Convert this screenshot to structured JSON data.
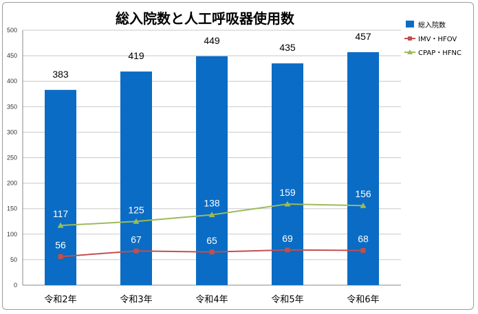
{
  "chart_data": {
    "type": "bar",
    "title": "総入院数と人工呼吸器使用数",
    "categories": [
      "令和2年",
      "令和3年",
      "令和4年",
      "令和5年",
      "令和6年"
    ],
    "ylim": [
      0,
      500
    ],
    "yticks": [
      0,
      50,
      100,
      150,
      200,
      250,
      300,
      350,
      400,
      450,
      500
    ],
    "grid": true,
    "legend_position": "right",
    "series": [
      {
        "name": "総入院数",
        "kind": "bar",
        "color": "#0a6cc4",
        "values": [
          383,
          419,
          449,
          435,
          457
        ]
      },
      {
        "name": "IMV・HFOV",
        "kind": "line",
        "color": "#c0504d",
        "marker": "square",
        "values": [
          56,
          67,
          65,
          69,
          68
        ]
      },
      {
        "name": "CPAP・HFNC",
        "kind": "line",
        "color": "#9bbb59",
        "marker": "triangle",
        "values": [
          117,
          125,
          138,
          159,
          156
        ]
      }
    ]
  }
}
